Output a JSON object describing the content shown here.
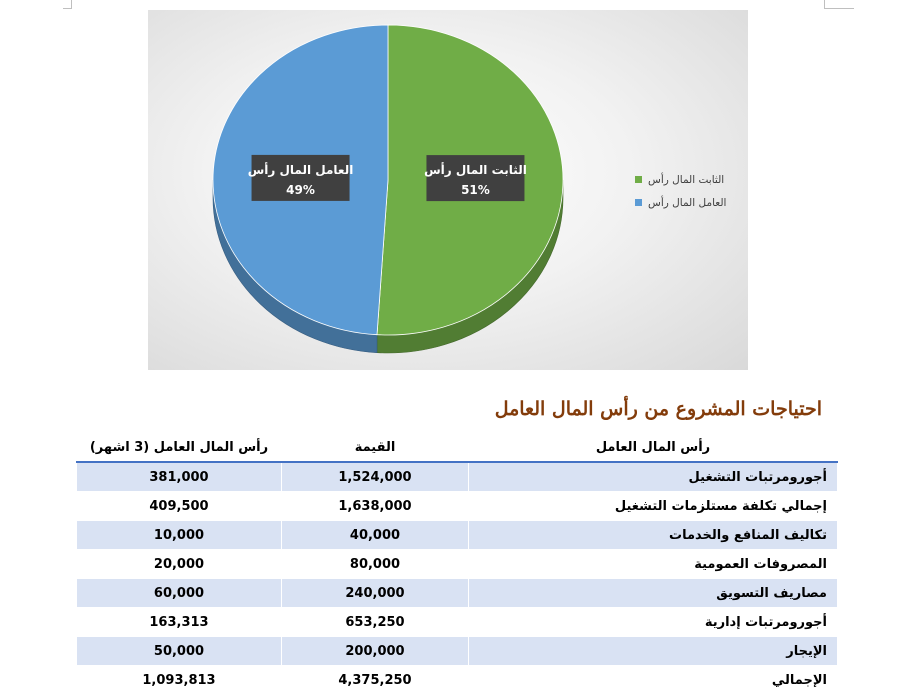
{
  "chart_data": {
    "type": "pie",
    "title": "",
    "series": [
      {
        "name": "",
        "slices": [
          {
            "label": "الثابت المال رأس",
            "value": 51,
            "data_label": "51%",
            "color": "#70ad47"
          },
          {
            "label": "العامل المال رأس",
            "value": 49,
            "data_label": "49%",
            "color": "#5b9bd5"
          }
        ]
      }
    ],
    "legend": {
      "position": "right",
      "items": [
        {
          "label": "الثابت المال رأس",
          "color": "#70ad47"
        },
        {
          "label": "العامل المال رأس",
          "color": "#5b9bd5"
        }
      ]
    },
    "style": "3d"
  },
  "table": {
    "title": "احتياجات المشروع من رأس المال العامل",
    "headers": [
      "رأس المال العامل",
      "القيمة",
      "رأس المال العامل (3 اشهر)"
    ],
    "rows": [
      {
        "name": "أجورومرتبات التشغيل",
        "value": "1,524,000",
        "three_months": "381,000"
      },
      {
        "name": "إجمالي تكلفة مستلزمات التشغيل",
        "value": "1,638,000",
        "three_months": "409,500"
      },
      {
        "name": "تكاليف المنافع والخدمات",
        "value": "40,000",
        "three_months": "10,000"
      },
      {
        "name": "المصروفات العمومية",
        "value": "80,000",
        "three_months": "20,000"
      },
      {
        "name": "مصاريف التسويق",
        "value": "240,000",
        "three_months": "60,000"
      },
      {
        "name": "أجورومرتبات إدارية",
        "value": "653,250",
        "three_months": "163,313"
      },
      {
        "name": "الإيجار",
        "value": "200,000",
        "three_months": "50,000"
      },
      {
        "name": "الإجمالي",
        "value": "4,375,250",
        "three_months": "1,093,813"
      }
    ]
  },
  "colors": {
    "accent_blue": "#4472c4",
    "row_band": "#d9e2f3",
    "title_brown": "#833c0b",
    "datalabel_bg": "#404040"
  }
}
